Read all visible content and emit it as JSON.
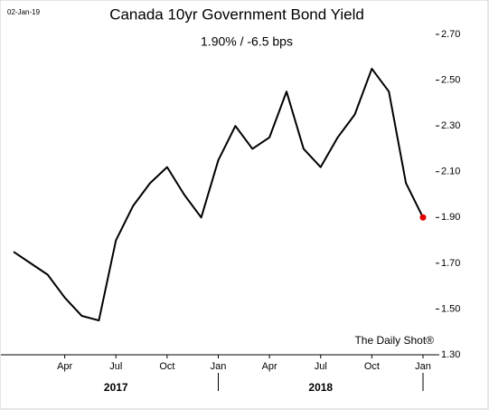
{
  "chart_data": {
    "type": "line",
    "title": "Canada 10yr Government Bond Yield",
    "subtitle": "1.90%  /  -6.5 bps",
    "date_label": "02-Jan-19",
    "source": "The Daily Shot®",
    "x": [
      "2017-01",
      "2017-02",
      "2017-03",
      "2017-04",
      "2017-05",
      "2017-06",
      "2017-07",
      "2017-08",
      "2017-09",
      "2017-10",
      "2017-11",
      "2017-12",
      "2018-01",
      "2018-02",
      "2018-03",
      "2018-04",
      "2018-05",
      "2018-06",
      "2018-07",
      "2018-08",
      "2018-09",
      "2018-10",
      "2018-11",
      "2018-12",
      "2019-01"
    ],
    "series": [
      {
        "name": "Canada 10yr",
        "color": "#000000",
        "values": [
          1.75,
          1.7,
          1.65,
          1.55,
          1.47,
          1.45,
          1.8,
          1.95,
          2.05,
          2.12,
          2.0,
          1.9,
          2.15,
          2.3,
          2.2,
          2.25,
          2.45,
          2.2,
          2.12,
          2.25,
          2.35,
          2.55,
          2.45,
          2.05,
          1.9
        ]
      }
    ],
    "last_point_color": "#e00000",
    "ylim": [
      1.3,
      2.7
    ],
    "yticks": [
      {
        "value": 1.3,
        "label": "1.30"
      },
      {
        "value": 1.5,
        "label": "1.50"
      },
      {
        "value": 1.7,
        "label": "1.70"
      },
      {
        "value": 1.9,
        "label": "1.90"
      },
      {
        "value": 2.1,
        "label": "2.10"
      },
      {
        "value": 2.3,
        "label": "2.30"
      },
      {
        "value": 2.5,
        "label": "2.50"
      },
      {
        "value": 2.7,
        "label": "2.70"
      }
    ],
    "xticks": [
      {
        "value": "2017-04",
        "label": "Apr"
      },
      {
        "value": "2017-07",
        "label": "Jul"
      },
      {
        "value": "2017-10",
        "label": "Oct"
      },
      {
        "value": "2018-01",
        "label": "Jan"
      },
      {
        "value": "2018-04",
        "label": "Apr"
      },
      {
        "value": "2018-07",
        "label": "Jul"
      },
      {
        "value": "2018-10",
        "label": "Oct"
      },
      {
        "value": "2019-01",
        "label": "Jan"
      }
    ],
    "years": [
      "2017",
      "2018"
    ]
  }
}
